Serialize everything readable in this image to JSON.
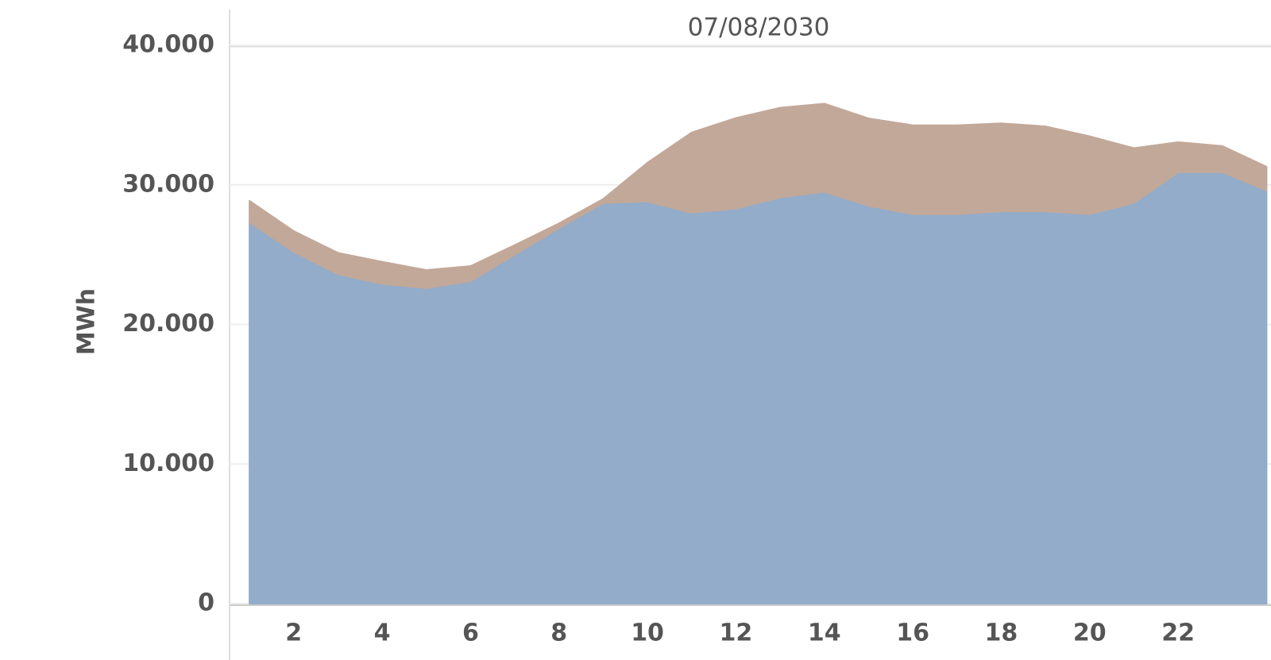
{
  "chart_data": {
    "type": "stacked_area",
    "header": "07/08/2030",
    "y_label": "MWh",
    "x": [
      1,
      2,
      3,
      4,
      5,
      6,
      7,
      8,
      9,
      10,
      11,
      12,
      13,
      14,
      15,
      16,
      17,
      18,
      19,
      20,
      21,
      22,
      23,
      24
    ],
    "series": [
      {
        "color": "#92acca",
        "values": [
          27300,
          25200,
          23600,
          22900,
          22600,
          23100,
          25000,
          26900,
          28700,
          28800,
          28000,
          28300,
          29100,
          29500,
          28500,
          27900,
          27900,
          28100,
          28100,
          27900,
          28700,
          30900,
          30900,
          29600
        ]
      },
      {
        "color": "#c2a899",
        "values": [
          1560,
          1490,
          1530,
          1590,
          1300,
          1080,
          690,
          340,
          290,
          2790,
          5750,
          6490,
          6430,
          6320,
          6260,
          6370,
          6370,
          6310,
          6090,
          5580,
          3930,
          2160,
          1880,
          1700
        ]
      }
    ],
    "xlim": [
      0.55,
      24.1
    ],
    "xticks": [
      2,
      4,
      6,
      8,
      10,
      12,
      14,
      16,
      18,
      20,
      22
    ],
    "ylim": [
      0,
      40000
    ],
    "yticks": [
      0,
      {
        "value": 10000,
        "label": "10.000"
      },
      {
        "value": 20000,
        "label": "20.000"
      },
      {
        "value": 30000,
        "label": "30.000"
      },
      {
        "value": 40000,
        "label": "40.000"
      }
    ],
    "grid": true
  }
}
